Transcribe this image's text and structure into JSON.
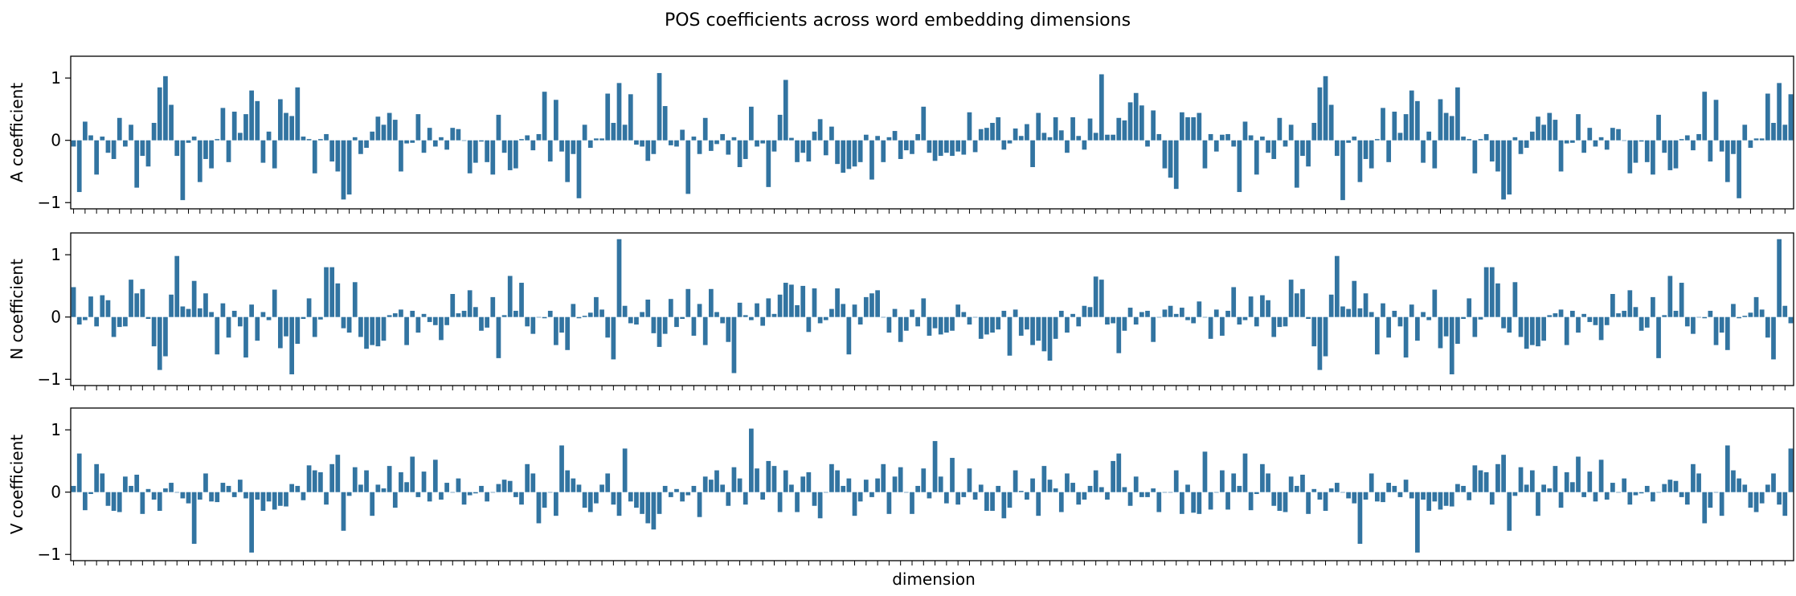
{
  "chart_data": {
    "type": "bar",
    "title": "POS coefficients across word embedding dimensions",
    "xlabel": "dimension",
    "color": "#3274a1",
    "grid": false,
    "n_dimensions": 300,
    "ylim": [
      -1.1,
      1.35
    ],
    "yticks": [
      -1,
      0,
      1
    ],
    "panels": [
      {
        "name": "A",
        "ylabel": "A coefficient",
        "values": [
          -0.1,
          -0.83,
          0.3,
          0.08,
          -0.55,
          0.06,
          -0.2,
          -0.3,
          0.36,
          -0.1,
          0.25,
          -0.76,
          -0.25,
          -0.42,
          0.28,
          0.85,
          1.03,
          0.57,
          -0.25,
          -0.96,
          -0.04,
          0.06,
          -0.67,
          -0.3,
          -0.45,
          0.02,
          0.52,
          -0.35,
          0.46,
          0.12,
          0.42,
          0.8,
          0.63,
          -0.36,
          0.14,
          -0.45,
          0.66,
          0.44,
          0.39,
          0.85,
          0.06,
          0.02,
          -0.53,
          0.02,
          0.1,
          -0.34,
          -0.5,
          -0.95,
          -0.87,
          0.05,
          -0.22,
          -0.12,
          0.14,
          0.38,
          0.25,
          0.44,
          0.33,
          -0.5,
          -0.05,
          -0.04,
          0.42,
          -0.2,
          0.2,
          -0.1,
          0.05,
          -0.15,
          0.2,
          0.18,
          0.0,
          -0.53,
          -0.36,
          -0.02,
          -0.35,
          -0.55,
          0.41,
          -0.2,
          -0.48,
          -0.45,
          0.02,
          0.08,
          -0.16,
          0.1,
          0.78,
          -0.34,
          0.65,
          -0.18,
          -0.67,
          -0.22,
          -0.93,
          0.25,
          -0.12,
          0.03,
          0.03,
          0.75,
          0.28,
          0.92,
          0.25,
          0.74,
          -0.07,
          -0.1,
          -0.33,
          -0.22,
          1.08,
          0.55,
          -0.08,
          -0.1,
          0.17,
          -0.86,
          0.06,
          -0.22,
          0.36,
          -0.17,
          -0.06,
          0.1,
          -0.23,
          0.05,
          -0.43,
          -0.3,
          0.54,
          -0.1,
          -0.05,
          -0.75,
          -0.18,
          0.41,
          0.97,
          0.04,
          -0.35,
          -0.2,
          -0.34,
          0.14,
          0.34,
          -0.24,
          0.22,
          -0.38,
          -0.52,
          -0.46,
          -0.42,
          -0.35,
          0.09,
          -0.63,
          0.07,
          -0.35,
          0.05,
          0.15,
          -0.3,
          -0.16,
          -0.22,
          0.1,
          0.54,
          -0.2,
          -0.33,
          -0.25,
          -0.2,
          -0.25,
          -0.18,
          -0.23,
          0.45,
          -0.19,
          0.18,
          0.2,
          0.28,
          0.37,
          -0.15,
          -0.05,
          0.19,
          0.07,
          0.26,
          -0.43,
          0.44,
          0.12,
          0.05,
          0.37,
          0.16,
          -0.2,
          0.37,
          0.07,
          -0.15,
          0.35,
          0.12,
          1.06,
          0.09,
          0.09,
          0.36,
          0.32,
          0.61,
          0.76,
          0.56,
          -0.1,
          0.48,
          0.1,
          -0.45,
          -0.6,
          -0.78,
          0.45,
          0.37,
          0.37,
          0.44,
          -0.45,
          0.1,
          -0.18,
          0.09,
          0.1
        ],
        "gap_start_index": 0
      },
      {
        "name": "N",
        "ylabel": "N coefficient",
        "values": [
          0.48,
          -0.12,
          -0.05,
          0.33,
          -0.15,
          0.35,
          0.27,
          -0.32,
          -0.16,
          -0.15,
          0.6,
          0.38,
          0.45,
          -0.03,
          -0.47,
          -0.85,
          -0.63,
          0.36,
          0.98,
          0.17,
          0.13,
          0.58,
          0.14,
          0.38,
          0.08,
          -0.6,
          0.22,
          -0.33,
          0.1,
          -0.15,
          -0.65,
          0.2,
          -0.38,
          0.08,
          -0.05,
          0.44,
          -0.5,
          -0.31,
          -0.92,
          -0.43,
          -0.03,
          0.3,
          -0.32,
          -0.04,
          0.8,
          0.8,
          0.54,
          -0.18,
          -0.25,
          0.56,
          -0.32,
          -0.51,
          -0.45,
          -0.47,
          -0.38,
          0.03,
          0.06,
          0.12,
          -0.45,
          0.1,
          -0.25,
          0.05,
          -0.08,
          -0.13,
          -0.37,
          -0.13,
          0.37,
          0.06,
          0.1,
          0.43,
          0.16,
          -0.22,
          -0.17,
          0.32,
          -0.66,
          0.03,
          0.66,
          0.1,
          0.55,
          -0.15,
          -0.27,
          0.0,
          -0.02,
          0.1,
          -0.45,
          -0.25,
          -0.53,
          0.21,
          -0.02,
          0.02,
          0.07,
          0.32,
          0.12,
          -0.33,
          -0.68,
          1.25,
          0.18,
          -0.1,
          -0.12,
          0.08,
          0.28,
          -0.26,
          -0.48,
          -0.27,
          0.29,
          -0.16,
          -0.03,
          0.45,
          -0.3,
          0.21,
          -0.45,
          0.45,
          0.08,
          -0.1,
          -0.4,
          -0.9,
          0.23,
          0.03,
          -0.05,
          0.22,
          -0.14,
          0.3,
          0.05,
          0.36,
          0.55,
          0.52,
          0.19,
          0.5,
          -0.24,
          0.46,
          -0.1,
          -0.05,
          0.13,
          0.46,
          0.21,
          -0.6,
          0.2,
          -0.12,
          0.32,
          0.38,
          0.43,
          0.0,
          -0.25,
          0.13,
          -0.4,
          -0.22,
          0.12,
          -0.15,
          0.3,
          -0.3,
          -0.18,
          -0.28,
          -0.25,
          -0.22,
          0.2,
          0.08,
          -0.12,
          0.0,
          -0.35,
          -0.28,
          -0.25,
          -0.2,
          0.1,
          -0.62,
          0.12,
          -0.3,
          -0.2,
          -0.45,
          -0.38,
          -0.55,
          -0.7,
          -0.35,
          0.1,
          -0.25,
          0.05,
          -0.15,
          0.18,
          0.16,
          0.65,
          0.6,
          -0.12,
          -0.1,
          -0.58,
          -0.22,
          0.15,
          -0.12,
          0.08,
          0.1,
          -0.4,
          0.0,
          0.12,
          0.18,
          0.05,
          0.15,
          -0.05,
          -0.1,
          0.25,
          0.0,
          -0.35,
          0.12,
          -0.3,
          0.1
        ],
        "gap_start_index": 0
      },
      {
        "name": "V",
        "ylabel": "V coefficient",
        "values": [
          0.1,
          0.62,
          -0.29,
          -0.03,
          0.45,
          0.3,
          -0.22,
          -0.3,
          -0.32,
          0.25,
          0.1,
          0.28,
          -0.35,
          0.05,
          -0.12,
          -0.3,
          0.06,
          0.15,
          0.0,
          -0.1,
          -0.18,
          -0.83,
          -0.12,
          0.3,
          -0.15,
          -0.16,
          0.15,
          0.1,
          -0.08,
          0.2,
          -0.1,
          -0.97,
          -0.12,
          -0.3,
          -0.15,
          -0.28,
          -0.22,
          -0.23,
          0.13,
          0.1,
          -0.13,
          0.43,
          0.35,
          0.32,
          -0.2,
          0.45,
          0.6,
          -0.62,
          -0.06,
          0.4,
          0.12,
          0.35,
          -0.38,
          0.12,
          0.06,
          0.42,
          -0.25,
          0.32,
          0.16,
          0.57,
          -0.08,
          0.33,
          -0.15,
          0.52,
          -0.12,
          0.15,
          0.0,
          0.22,
          -0.2,
          -0.05,
          -0.02,
          0.1,
          -0.15,
          0.0,
          0.13,
          0.2,
          0.18,
          -0.08,
          -0.2,
          0.45,
          0.3,
          -0.5,
          -0.25,
          0.0,
          -0.38,
          0.75,
          0.35,
          0.22,
          0.12,
          -0.25,
          -0.32,
          -0.18,
          0.12,
          0.3,
          -0.2,
          -0.38,
          0.7,
          -0.15,
          -0.25,
          -0.35,
          -0.5,
          -0.6,
          -0.35,
          0.1,
          -0.08,
          0.05,
          -0.15,
          -0.05,
          0.1,
          -0.4,
          0.25,
          0.2,
          0.35,
          0.12,
          -0.22,
          0.4,
          0.22,
          -0.2,
          1.02,
          0.38,
          -0.12,
          0.5,
          0.42,
          -0.32,
          0.35,
          0.12,
          -0.32,
          0.25,
          0.32,
          -0.22,
          -0.42,
          0.0,
          0.45,
          0.35,
          0.1,
          0.22,
          -0.38,
          -0.15,
          0.2,
          -0.08,
          0.22,
          0.45,
          -0.35,
          0.25,
          0.4,
          0.0,
          -0.35,
          0.1,
          0.38,
          -0.1,
          0.82,
          0.25,
          -0.18,
          0.55,
          -0.2,
          -0.08,
          0.38,
          -0.12,
          0.12,
          -0.3,
          -0.3,
          0.1,
          -0.42,
          -0.25,
          0.35,
          0.02,
          -0.12,
          0.22,
          -0.38,
          0.42,
          0.2,
          0.06,
          -0.32,
          0.3,
          0.15,
          -0.2,
          -0.12,
          0.1,
          0.35,
          0.08,
          -0.12,
          0.5,
          0.62,
          0.08,
          -0.22,
          0.25,
          -0.08,
          -0.08,
          0.06,
          -0.32,
          0.0,
          0.0,
          0.35,
          -0.35,
          0.12,
          -0.33,
          -0.35,
          0.65,
          -0.28,
          0.0,
          0.35,
          -0.28,
          0.3
        ],
        "gap_start_index": 0
      }
    ]
  }
}
